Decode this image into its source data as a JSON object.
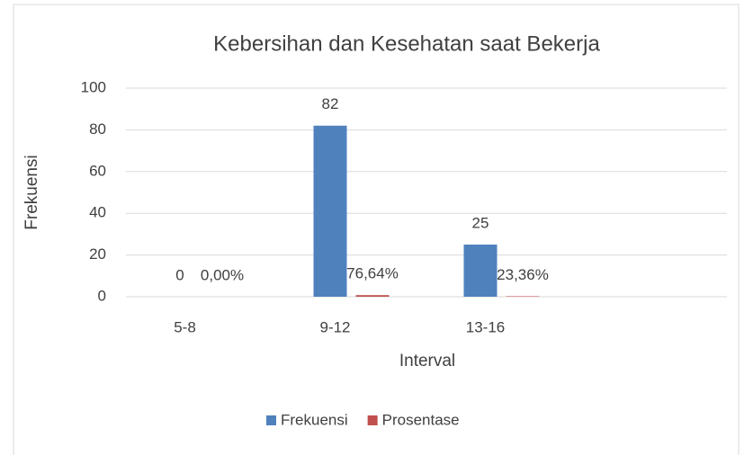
{
  "chart_data": {
    "type": "bar",
    "title": "Kebersihan dan Kesehatan saat Bekerja",
    "x_label": "Interval",
    "y_label": "Frekuensi",
    "categories": [
      "5-8",
      "9-12",
      "13-16",
      null
    ],
    "series": [
      {
        "name": "Frekuensi",
        "color": "#4f81bd",
        "values": [
          0,
          82,
          25,
          null
        ],
        "value_labels": [
          "0",
          "82",
          "25",
          null
        ]
      },
      {
        "name": "Prosentase",
        "color": "#c0504d",
        "values": [
          0,
          0.7664,
          0.2336,
          null
        ],
        "value_labels": [
          "0,00%",
          "76,64%",
          "23,36%",
          null
        ]
      }
    ],
    "ylim": [
      0,
      100
    ],
    "yticks": [
      0,
      20,
      40,
      60,
      80,
      100
    ],
    "grid": true,
    "legend": "bottom"
  }
}
